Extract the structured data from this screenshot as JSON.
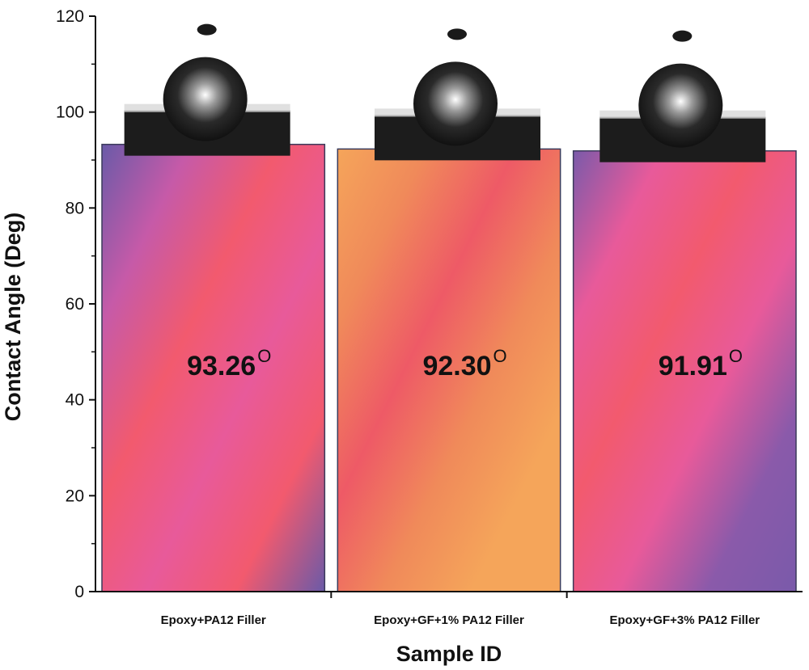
{
  "chart_data": {
    "type": "bar",
    "categories": [
      "Epoxy+PA12 Filler",
      "Epoxy+GF+1% PA12 Filler",
      "Epoxy+GF+3% PA12 Filler"
    ],
    "values": [
      93.26,
      92.3,
      91.91
    ],
    "data_labels": [
      "93.26",
      "92.30",
      "91.91"
    ],
    "data_label_suffix": "O",
    "xlabel": "Sample ID",
    "ylabel": "Contact Angle (Deg)",
    "ylim": [
      0,
      120
    ],
    "yticks": [
      0,
      20,
      40,
      60,
      80,
      100,
      120
    ],
    "grid": false,
    "legend": "none",
    "bar_gradients": [
      [
        "#6a5aa8",
        "#c65aa8",
        "#f25a6e",
        "#e85a9a",
        "#f25a6e",
        "#6a5aa8"
      ],
      [
        "#f5a55a",
        "#f08a5a",
        "#ee5a66",
        "#f08a5a",
        "#f5a55a",
        "#f5a55a"
      ],
      [
        "#7a5aaa",
        "#e85a9a",
        "#f25a6e",
        "#e85a9a",
        "#8a5aaa",
        "#7a5aaa"
      ]
    ],
    "bar_outline": "#3a3a5a",
    "droplet_images": 3
  }
}
